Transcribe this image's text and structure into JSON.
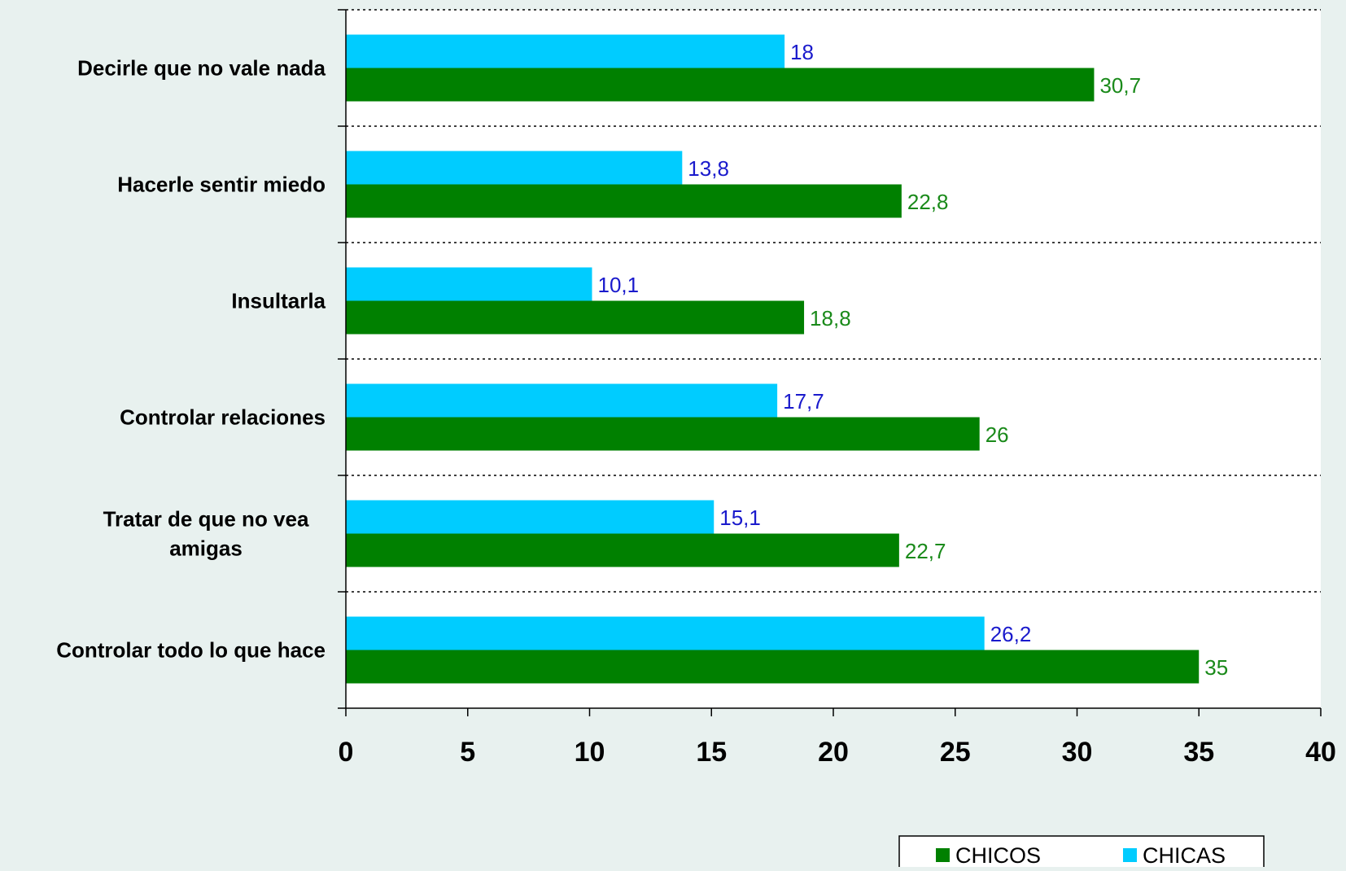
{
  "chart_data": {
    "type": "bar",
    "orientation": "horizontal",
    "categories": [
      [
        "Decirle que no vale nada"
      ],
      [
        "Hacerle sentir miedo"
      ],
      [
        "Insultarla"
      ],
      [
        "Controlar relaciones"
      ],
      [
        "Tratar de que no vea",
        "amigas"
      ],
      [
        "Controlar todo lo que hace"
      ]
    ],
    "series": [
      {
        "name": "CHICAS",
        "color": "#00ccff",
        "label_color": "#1a1acc",
        "values": [
          18,
          13.8,
          10.1,
          17.7,
          15.1,
          26.2
        ],
        "labels": [
          "18",
          "13,8",
          "10,1",
          "17,7",
          "15,1",
          "26,2"
        ]
      },
      {
        "name": "CHICOS",
        "color": "#008000",
        "label_color": "#1a8a1a",
        "values": [
          30.7,
          22.8,
          18.8,
          26,
          22.7,
          35
        ],
        "labels": [
          "30,7",
          "22,8",
          "18,8",
          "26",
          "22,7",
          "35"
        ]
      }
    ],
    "xlim": [
      0,
      40
    ],
    "xticks": [
      "0",
      "5",
      "10",
      "15",
      "20",
      "25",
      "30",
      "35",
      "40"
    ],
    "grid": "horizontal dotted between categories",
    "legend": {
      "placement": "bottom-right",
      "entries": [
        "CHICOS",
        "CHICAS"
      ]
    }
  }
}
